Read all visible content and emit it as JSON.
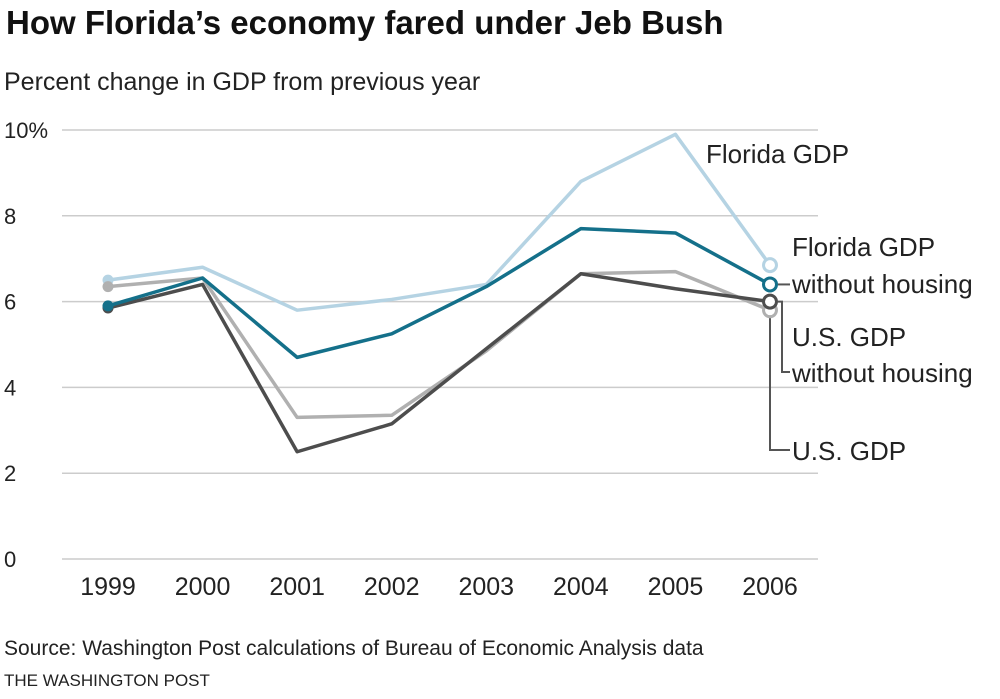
{
  "title": "How Florida’s economy fared under Jeb Bush",
  "subtitle": "Percent change in GDP from previous year",
  "source": "Source:  Washington Post calculations of Bureau of Economic Analysis data",
  "credit": "THE WASHINGTON POST",
  "colors": {
    "florida_gdp": "#b5d3e3",
    "florida_gdp_without_housing": "#14708a",
    "us_gdp_without_housing": "#b0b0b0",
    "us_gdp": "#4d4d4d",
    "grid": "#cccccc",
    "connector": "#555555"
  },
  "chart_data": {
    "type": "line",
    "x": [
      "1999",
      "2000",
      "2001",
      "2002",
      "2003",
      "2004",
      "2005",
      "2006"
    ],
    "y_ticks": [
      "10%",
      "8",
      "6",
      "4",
      "2",
      "0"
    ],
    "ylim": [
      0,
      10
    ],
    "grid": true,
    "series": [
      {
        "key": "florida_gdp",
        "name": "Florida GDP",
        "values": [
          6.5,
          6.8,
          5.8,
          6.05,
          6.4,
          8.8,
          9.9,
          6.85
        ]
      },
      {
        "key": "us_gdp_without_housing",
        "name": "U.S. GDP without housing",
        "values": [
          6.35,
          6.55,
          3.3,
          3.35,
          4.85,
          6.65,
          6.7,
          5.8
        ]
      },
      {
        "key": "us_gdp",
        "name": "U.S. GDP",
        "values": [
          5.85,
          6.4,
          2.5,
          3.15,
          4.9,
          6.65,
          6.3,
          6.0
        ]
      },
      {
        "key": "florida_gdp_without_housing",
        "name": "Florida GDP without housing",
        "values": [
          5.9,
          6.55,
          4.7,
          5.25,
          6.35,
          7.7,
          7.6,
          6.4
        ]
      }
    ],
    "labels": {
      "florida_gdp": [
        "Florida GDP"
      ],
      "florida_gdp_without_housing": [
        "Florida GDP",
        "without housing"
      ],
      "us_gdp_without_housing": [
        "U.S. GDP",
        "without housing"
      ],
      "us_gdp": [
        "U.S. GDP"
      ]
    }
  }
}
